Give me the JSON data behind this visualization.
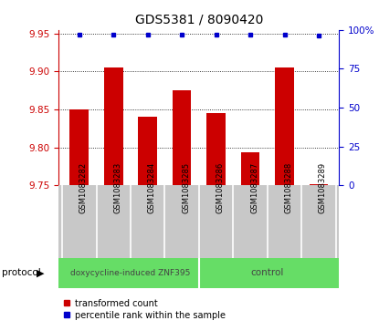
{
  "title": "GDS5381 / 8090420",
  "samples": [
    "GSM1083282",
    "GSM1083283",
    "GSM1083284",
    "GSM1083285",
    "GSM1083286",
    "GSM1083287",
    "GSM1083288",
    "GSM1083289"
  ],
  "red_values": [
    9.85,
    9.905,
    9.84,
    9.875,
    9.845,
    9.793,
    9.905,
    9.752
  ],
  "blue_values": [
    97,
    97,
    97,
    97,
    97,
    97,
    97,
    96
  ],
  "ylim_left": [
    9.75,
    9.955
  ],
  "ylim_right": [
    0,
    100
  ],
  "yticks_left": [
    9.75,
    9.8,
    9.85,
    9.9,
    9.95
  ],
  "yticks_right": [
    0,
    25,
    50,
    75,
    100
  ],
  "protocol_groups": [
    {
      "label": "doxycycline-induced ZNF395",
      "start": 0,
      "end": 4,
      "color": "#66DD66"
    },
    {
      "label": "control",
      "start": 4,
      "end": 8,
      "color": "#66DD66"
    }
  ],
  "bar_color": "#cc0000",
  "dot_color": "#0000cc",
  "bar_bottom": 9.75,
  "bar_width": 0.55,
  "legend_red": "transformed count",
  "legend_blue": "percentile rank within the sample",
  "protocol_label": "protocol",
  "bg_xlabel": "#c8c8c8",
  "bg_protocol": "#66DD66"
}
